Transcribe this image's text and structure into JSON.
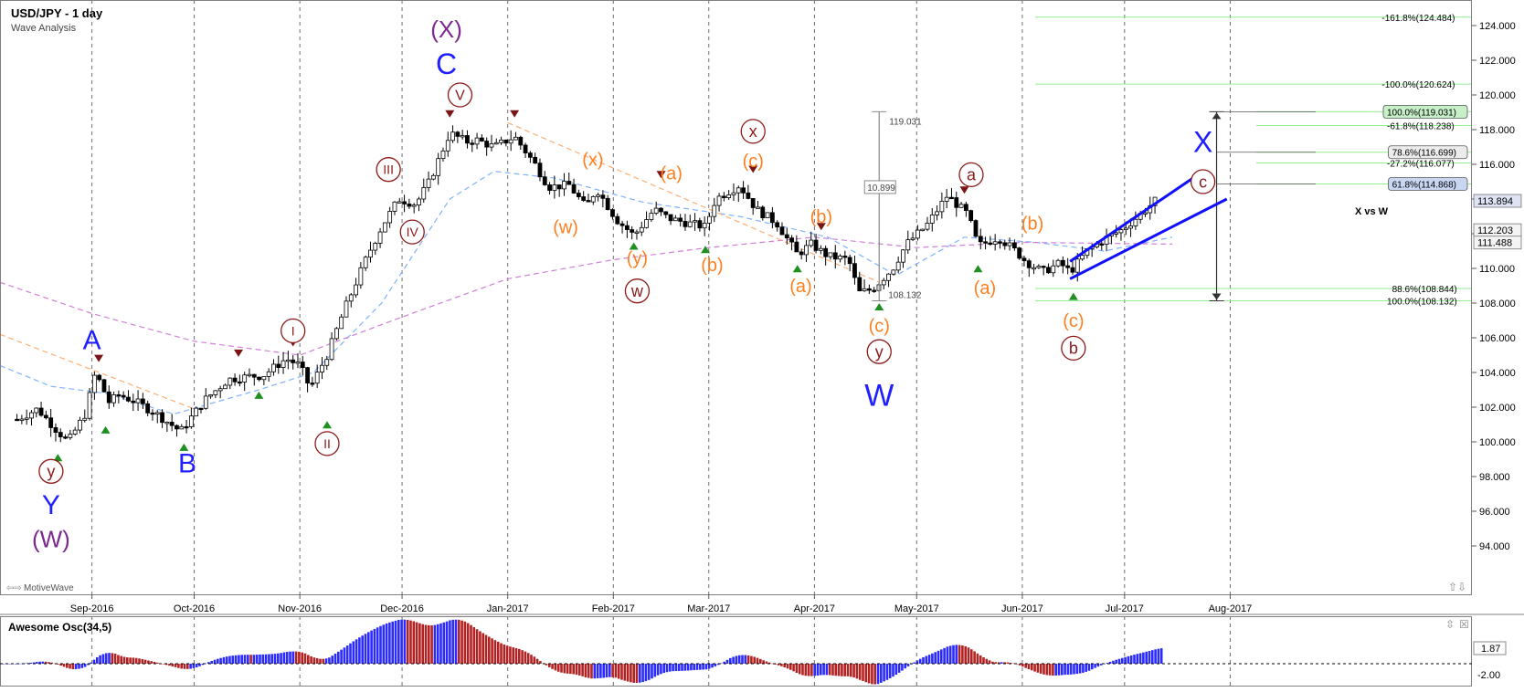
{
  "header": {
    "title": "USD/JPY - 1 day",
    "subtitle": "Wave Analysis",
    "footer_logo": "MotiveWave",
    "ratio_note": "X vs W"
  },
  "oscillator": {
    "title": "Awesome Osc(34,5)",
    "labels": [
      "1.87",
      "-2.00"
    ],
    "colors": {
      "up": "#2b2bff",
      "down": "#b22222"
    }
  },
  "colors": {
    "candle": "#000000",
    "wave_blue": "#1f1fff",
    "wave_purple": "#7b2a8f",
    "wave_dark_red": "#8b1a1a",
    "wave_orange": "#ff7f1f",
    "ma_fast": "#7fb2ff",
    "ma_slow": "#d07fd7",
    "trend_orange": "#ffae73",
    "fib_line": "#90ee90",
    "channel": "#1010ff"
  },
  "chart_data": {
    "type": "candlestick",
    "title": "USD/JPY - 1 day",
    "subtitle": "Wave Analysis",
    "ylim": [
      93.0,
      125.0
    ],
    "y_ticks": [
      "124.000",
      "122.000",
      "120.000",
      "118.000",
      "116.000",
      "114.000",
      "112.000",
      "110.000",
      "108.000",
      "106.000",
      "104.000",
      "102.000",
      "100.000",
      "98.000",
      "96.000",
      "94.000"
    ],
    "x_ticks": [
      "Sep-2016",
      "Oct-2016",
      "Nov-2016",
      "Dec-2016",
      "Jan-2017",
      "Feb-2017",
      "Mar-2017",
      "Apr-2017",
      "May-2017",
      "Jun-2017",
      "Jul-2017",
      "Aug-2017"
    ],
    "price_labels": [
      {
        "text": "113.894",
        "value": 113.894
      },
      {
        "text": "112.203",
        "value": 112.203
      },
      {
        "text": "111.488",
        "value": 111.488
      }
    ],
    "close_path": [
      [
        "2016-08-10",
        101.3
      ],
      [
        "2016-08-16",
        101.9
      ],
      [
        "2016-08-22",
        100.6
      ],
      [
        "2016-08-25",
        100.0
      ],
      [
        "2016-08-30",
        101.6
      ],
      [
        "2016-09-02",
        104.0
      ],
      [
        "2016-09-06",
        102.3
      ],
      [
        "2016-09-09",
        102.7
      ],
      [
        "2016-09-14",
        102.3
      ],
      [
        "2016-09-20",
        101.6
      ],
      [
        "2016-09-27",
        100.6
      ],
      [
        "2016-10-04",
        102.4
      ],
      [
        "2016-10-11",
        103.6
      ],
      [
        "2016-10-18",
        103.8
      ],
      [
        "2016-10-21",
        103.8
      ],
      [
        "2016-10-28",
        104.8
      ],
      [
        "2016-11-01",
        104.4
      ],
      [
        "2016-11-04",
        103.1
      ],
      [
        "2016-11-09",
        105.0
      ],
      [
        "2016-11-14",
        107.6
      ],
      [
        "2016-11-21",
        110.8
      ],
      [
        "2016-11-25",
        112.4
      ],
      [
        "2016-11-30",
        114.0
      ],
      [
        "2016-12-05",
        113.7
      ],
      [
        "2016-12-09",
        115.0
      ],
      [
        "2016-12-15",
        117.8
      ],
      [
        "2016-12-20",
        117.3
      ],
      [
        "2016-12-23",
        117.4
      ],
      [
        "2016-12-28",
        117.0
      ],
      [
        "2017-01-03",
        117.6
      ],
      [
        "2017-01-09",
        116.0
      ],
      [
        "2017-01-13",
        114.7
      ],
      [
        "2017-01-19",
        114.8
      ],
      [
        "2017-01-24",
        113.5
      ],
      [
        "2017-01-27",
        114.6
      ],
      [
        "2017-02-02",
        112.8
      ],
      [
        "2017-02-07",
        111.9
      ],
      [
        "2017-02-13",
        113.4
      ],
      [
        "2017-02-17",
        112.9
      ],
      [
        "2017-02-23",
        112.6
      ],
      [
        "2017-02-28",
        112.4
      ],
      [
        "2017-03-03",
        114.0
      ],
      [
        "2017-03-10",
        114.8
      ],
      [
        "2017-03-15",
        113.4
      ],
      [
        "2017-03-21",
        112.6
      ],
      [
        "2017-03-27",
        110.8
      ],
      [
        "2017-03-31",
        111.4
      ],
      [
        "2017-04-05",
        110.7
      ],
      [
        "2017-04-11",
        110.5
      ],
      [
        "2017-04-14",
        108.6
      ],
      [
        "2017-04-18",
        108.8
      ],
      [
        "2017-04-24",
        110.0
      ],
      [
        "2017-04-28",
        111.4
      ],
      [
        "2017-05-04",
        112.5
      ],
      [
        "2017-05-10",
        114.2
      ],
      [
        "2017-05-16",
        113.1
      ],
      [
        "2017-05-19",
        111.3
      ],
      [
        "2017-05-25",
        111.8
      ],
      [
        "2017-05-30",
        111.0
      ],
      [
        "2017-06-02",
        110.4
      ],
      [
        "2017-06-07",
        109.8
      ],
      [
        "2017-06-12",
        110.3
      ],
      [
        "2017-06-15",
        109.8
      ],
      [
        "2017-06-20",
        111.0
      ],
      [
        "2017-06-26",
        111.8
      ],
      [
        "2017-06-30",
        112.2
      ],
      [
        "2017-07-05",
        113.0
      ],
      [
        "2017-07-10",
        113.9
      ]
    ],
    "lines": [
      {
        "name": "moving average fast",
        "color": "#7fb2ff",
        "points": [
          [
            "2016-08-05",
            104.4
          ],
          [
            "2016-08-20",
            103.2
          ],
          [
            "2016-09-05",
            102.8
          ],
          [
            "2016-09-25",
            101.6
          ],
          [
            "2016-10-20",
            103.0
          ],
          [
            "2016-11-05",
            104.0
          ],
          [
            "2016-11-25",
            108.0
          ],
          [
            "2016-12-15",
            114.0
          ],
          [
            "2016-12-28",
            115.6
          ],
          [
            "2017-01-15",
            115.2
          ],
          [
            "2017-02-10",
            113.8
          ],
          [
            "2017-03-10",
            113.0
          ],
          [
            "2017-04-05",
            111.8
          ],
          [
            "2017-04-25",
            109.6
          ],
          [
            "2017-05-15",
            111.8
          ],
          [
            "2017-06-05",
            111.5
          ],
          [
            "2017-06-25",
            111.0
          ],
          [
            "2017-07-15",
            111.8
          ]
        ]
      },
      {
        "name": "moving average slow",
        "color": "#d07fd7",
        "points": [
          [
            "2016-08-05",
            109.2
          ],
          [
            "2016-09-01",
            107.4
          ],
          [
            "2016-10-01",
            105.8
          ],
          [
            "2016-11-01",
            105.0
          ],
          [
            "2016-12-01",
            107.2
          ],
          [
            "2017-01-01",
            109.4
          ],
          [
            "2017-02-01",
            110.5
          ],
          [
            "2017-03-01",
            111.2
          ],
          [
            "2017-04-01",
            111.8
          ],
          [
            "2017-05-01",
            111.2
          ],
          [
            "2017-06-01",
            111.5
          ],
          [
            "2017-07-15",
            111.4
          ]
        ]
      },
      {
        "name": "trend line Aug-Oct 2016",
        "color": "#ffae73",
        "points": [
          [
            "2016-08-05",
            106.2
          ],
          [
            "2016-10-01",
            101.9
          ]
        ]
      },
      {
        "name": "trend line Jan-Apr 2017",
        "color": "#ffae73",
        "points": [
          [
            "2017-01-01",
            118.4
          ],
          [
            "2017-04-20",
            109.2
          ]
        ]
      }
    ],
    "fib_levels": [
      {
        "label": "-161.8%(124.484)",
        "value": 124.484
      },
      {
        "label": "-100.0%(120.624)",
        "value": 120.624
      },
      {
        "label": "100.0%(119.031)",
        "value": 119.031,
        "box": "#c8f0c8"
      },
      {
        "label": "-61.8%(118.238)",
        "value": 118.238
      },
      {
        "label": "78.6%(116.699)",
        "value": 116.699,
        "box": "#ececec"
      },
      {
        "label": "-27.2%(116.077)",
        "value": 116.077
      },
      {
        "label": "61.8%(114.868)",
        "value": 114.868,
        "box": "#c9d6f2"
      },
      {
        "label": "88.6%(108.844)",
        "value": 108.844
      },
      {
        "label": "100.0%(108.132)",
        "value": 108.132
      }
    ],
    "measure_tool": {
      "top_value": 119.031,
      "bottom_value": 108.132,
      "top_label": "119.031",
      "bottom_label": "108.132",
      "range_label": "10.899",
      "date": "2017-04-20"
    },
    "measure_arrow": {
      "top_value": 119.031,
      "bottom_value": 108.132,
      "date": "2017-07-28"
    },
    "channel": [
      {
        "points": [
          [
            "2017-06-15",
            110.4
          ],
          [
            "2017-07-24",
            115.6
          ]
        ]
      },
      {
        "points": [
          [
            "2017-06-15",
            109.4
          ],
          [
            "2017-07-31",
            114.0
          ]
        ]
      }
    ],
    "wave_labels": [
      {
        "text": "(X)",
        "date": "2016-12-14",
        "value": 123.8,
        "color": "#7b2a8f",
        "size": 26,
        "circle": false
      },
      {
        "text": "C",
        "date": "2016-12-14",
        "value": 121.8,
        "color": "#1f1fff",
        "size": 32,
        "circle": false
      },
      {
        "text": "V",
        "date": "2016-12-18",
        "value": 120.0,
        "color": "#8b1a1a",
        "size": 16,
        "circle": true
      },
      {
        "text": "III",
        "date": "2016-11-27",
        "value": 115.7,
        "color": "#8b1a1a",
        "size": 14,
        "circle": true
      },
      {
        "text": "IV",
        "date": "2016-12-04",
        "value": 112.1,
        "color": "#8b1a1a",
        "size": 14,
        "circle": true
      },
      {
        "text": "I",
        "date": "2016-10-30",
        "value": 106.4,
        "color": "#8b1a1a",
        "size": 14,
        "circle": true
      },
      {
        "text": "II",
        "date": "2016-11-09",
        "value": 99.9,
        "color": "#8b1a1a",
        "size": 14,
        "circle": true
      },
      {
        "text": "A",
        "date": "2016-09-01",
        "value": 105.9,
        "color": "#1f1fff",
        "size": 30,
        "circle": false
      },
      {
        "text": "B",
        "date": "2016-09-29",
        "value": 98.8,
        "color": "#1f1fff",
        "size": 30,
        "circle": false
      },
      {
        "text": "y",
        "date": "2016-08-20",
        "value": 98.3,
        "color": "#8b1a1a",
        "size": 18,
        "circle": true
      },
      {
        "text": "Y",
        "date": "2016-08-20",
        "value": 96.4,
        "color": "#1f1fff",
        "size": 30,
        "circle": false
      },
      {
        "text": "(W)",
        "date": "2016-08-20",
        "value": 94.4,
        "color": "#7b2a8f",
        "size": 26,
        "circle": false
      },
      {
        "text": "(x)",
        "date": "2017-01-26",
        "value": 116.3,
        "color": "#ff7f1f",
        "size": 20,
        "circle": false
      },
      {
        "text": "(w)",
        "date": "2017-01-18",
        "value": 112.4,
        "color": "#ff7f1f",
        "size": 20,
        "circle": false
      },
      {
        "text": "(a)",
        "date": "2017-02-18",
        "value": 115.5,
        "color": "#ff7f1f",
        "size": 20,
        "circle": false
      },
      {
        "text": "(y)",
        "date": "2017-02-08",
        "value": 110.6,
        "color": "#ff7f1f",
        "size": 20,
        "circle": false
      },
      {
        "text": "w",
        "date": "2017-02-08",
        "value": 108.7,
        "color": "#8b1a1a",
        "size": 18,
        "circle": true
      },
      {
        "text": "(b)",
        "date": "2017-03-02",
        "value": 110.2,
        "color": "#ff7f1f",
        "size": 20,
        "circle": false
      },
      {
        "text": "x",
        "date": "2017-03-14",
        "value": 117.9,
        "color": "#8b1a1a",
        "size": 18,
        "circle": true
      },
      {
        "text": "(c)",
        "date": "2017-03-14",
        "value": 116.2,
        "color": "#ff7f1f",
        "size": 20,
        "circle": false
      },
      {
        "text": "(b)",
        "date": "2017-04-03",
        "value": 113.0,
        "color": "#ff7f1f",
        "size": 20,
        "circle": false
      },
      {
        "text": "(a)",
        "date": "2017-03-28",
        "value": 109.0,
        "color": "#ff7f1f",
        "size": 20,
        "circle": false
      },
      {
        "text": "(c)",
        "date": "2017-04-20",
        "value": 106.7,
        "color": "#ff7f1f",
        "size": 20,
        "circle": false
      },
      {
        "text": "y",
        "date": "2017-04-20",
        "value": 105.2,
        "color": "#8b1a1a",
        "size": 18,
        "circle": true
      },
      {
        "text": "W",
        "date": "2017-04-20",
        "value": 102.7,
        "color": "#1f1fff",
        "size": 34,
        "circle": false
      },
      {
        "text": "a",
        "date": "2017-05-17",
        "value": 115.4,
        "color": "#8b1a1a",
        "size": 18,
        "circle": true
      },
      {
        "text": "(a)",
        "date": "2017-05-21",
        "value": 108.9,
        "color": "#ff7f1f",
        "size": 20,
        "circle": false
      },
      {
        "text": "(b)",
        "date": "2017-06-04",
        "value": 112.6,
        "color": "#ff7f1f",
        "size": 20,
        "circle": false
      },
      {
        "text": "(c)",
        "date": "2017-06-16",
        "value": 107.0,
        "color": "#ff7f1f",
        "size": 20,
        "circle": false
      },
      {
        "text": "b",
        "date": "2017-06-16",
        "value": 105.4,
        "color": "#8b1a1a",
        "size": 18,
        "circle": true
      },
      {
        "text": "X",
        "date": "2017-07-24",
        "value": 117.3,
        "color": "#1f1fff",
        "size": 32,
        "circle": false
      },
      {
        "text": "c",
        "date": "2017-07-24",
        "value": 115.0,
        "color": "#8b1a1a",
        "size": 18,
        "circle": true
      }
    ],
    "pivot_markers": [
      {
        "kind": "high",
        "date": "2016-09-03",
        "value": 104.6
      },
      {
        "kind": "low",
        "date": "2016-09-05",
        "value": 100.9
      },
      {
        "kind": "low",
        "date": "2016-08-22",
        "value": 99.3
      },
      {
        "kind": "low",
        "date": "2016-09-28",
        "value": 99.9
      },
      {
        "kind": "high",
        "date": "2016-10-14",
        "value": 104.9
      },
      {
        "kind": "low",
        "date": "2016-10-20",
        "value": 102.9
      },
      {
        "kind": "high",
        "date": "2016-10-30",
        "value": 105.5
      },
      {
        "kind": "low",
        "date": "2016-11-09",
        "value": 101.2
      },
      {
        "kind": "high",
        "date": "2016-12-15",
        "value": 118.7
      },
      {
        "kind": "high",
        "date": "2017-01-03",
        "value": 118.7
      },
      {
        "kind": "high",
        "date": "2017-02-15",
        "value": 115.2
      },
      {
        "kind": "low",
        "date": "2017-02-07",
        "value": 111.5
      },
      {
        "kind": "low",
        "date": "2017-02-28",
        "value": 111.3
      },
      {
        "kind": "high",
        "date": "2017-03-14",
        "value": 115.5
      },
      {
        "kind": "high",
        "date": "2017-04-03",
        "value": 112.2
      },
      {
        "kind": "low",
        "date": "2017-03-27",
        "value": 110.2
      },
      {
        "kind": "low",
        "date": "2017-04-20",
        "value": 108.0
      },
      {
        "kind": "high",
        "date": "2017-05-15",
        "value": 114.3
      },
      {
        "kind": "low",
        "date": "2017-05-19",
        "value": 110.2
      },
      {
        "kind": "low",
        "date": "2017-06-16",
        "value": 108.6
      }
    ]
  }
}
